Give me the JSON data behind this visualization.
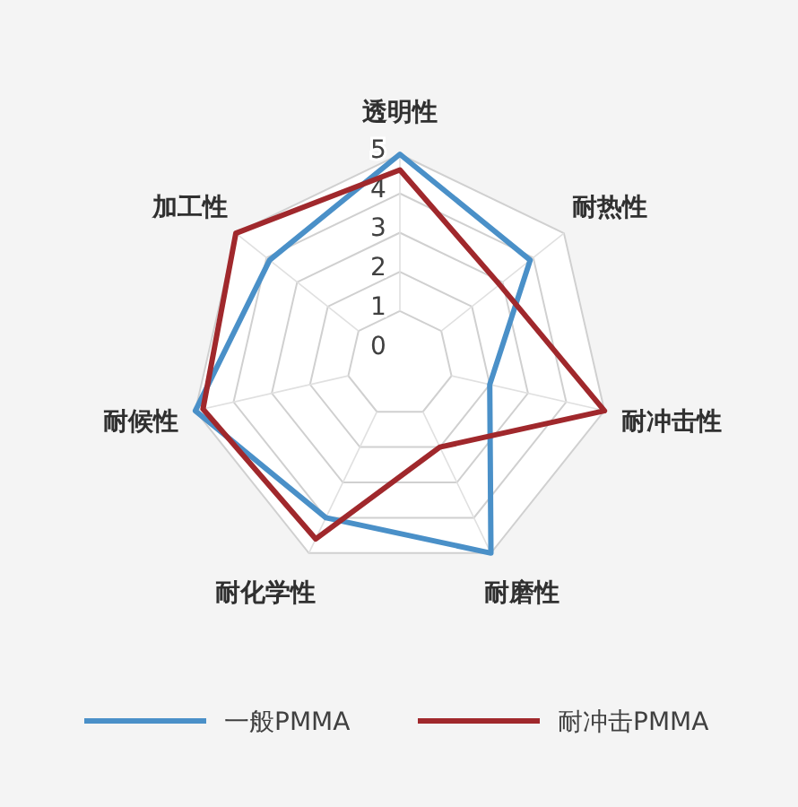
{
  "chart_data": {
    "type": "radar",
    "categories": [
      "透明性",
      "耐热性",
      "耐冲击性",
      "耐磨性",
      "耐化学性",
      "耐候性",
      "加工性"
    ],
    "series": [
      {
        "name": "一般PMMA",
        "color": "#4a90c8",
        "values": [
          5,
          3.9,
          2,
          5,
          4,
          5,
          3.9
        ]
      },
      {
        "name": "耐冲击PMMA",
        "color": "#a0282c",
        "values": [
          4.6,
          2.9,
          5,
          2,
          4.6,
          4.8,
          5
        ]
      }
    ],
    "ylim": [
      -0.35,
      5
    ],
    "yticks": [
      0,
      1,
      2,
      3,
      4,
      5
    ],
    "legend": "bottom",
    "marker": "none",
    "line_style": "solid"
  }
}
